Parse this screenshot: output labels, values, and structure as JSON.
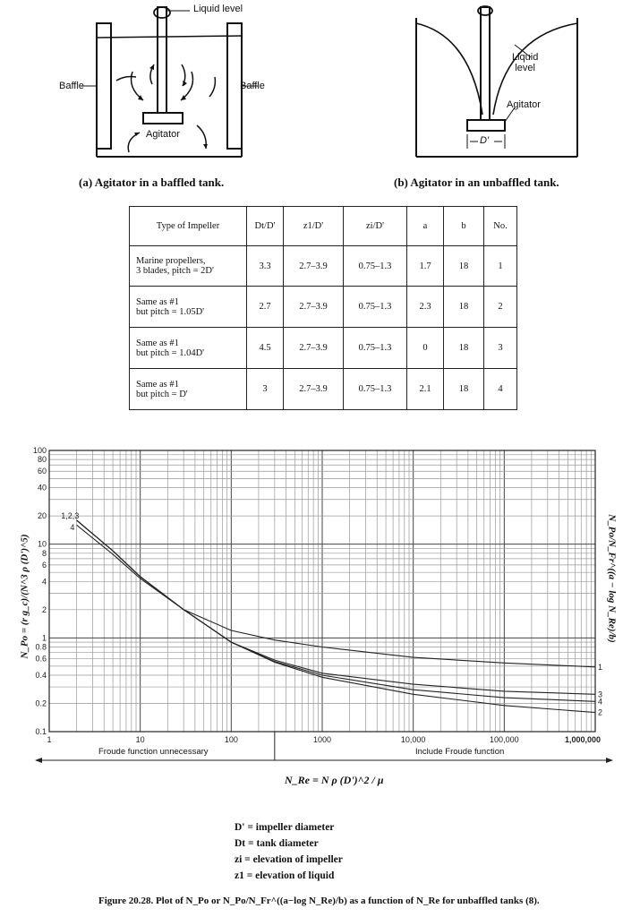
{
  "diagram_a": {
    "liquid_level": "Liquid level",
    "baffle_left": "Baffle",
    "baffle_right": "Baffle",
    "agitator": "Agitator",
    "caption": "(a) Agitator in a baffled tank."
  },
  "diagram_b": {
    "liquid_level": "Liquid\nlevel",
    "agitator": "Agitator",
    "dprime": "D'",
    "caption": "(b) Agitator in an unbaffled tank."
  },
  "table": {
    "headers": [
      "Type of Impeller",
      "Dt/D'",
      "z1/D'",
      "zi/D'",
      "a",
      "b",
      "No."
    ],
    "rows": [
      [
        "Marine propellers,\n3 blades, pitch = 2D'",
        "3.3",
        "2.7–3.9",
        "0.75–1.3",
        "1.7",
        "18",
        "1"
      ],
      [
        "Same as #1\nbut pitch = 1.05D'",
        "2.7",
        "2.7–3.9",
        "0.75–1.3",
        "2.3",
        "18",
        "2"
      ],
      [
        "Same as #1\nbut pitch = 1.04D'",
        "4.5",
        "2.7–3.9",
        "0.75–1.3",
        "0",
        "18",
        "3"
      ],
      [
        "Same as #1\nbut pitch = D'",
        "3",
        "2.7–3.9",
        "0.75–1.3",
        "2.1",
        "18",
        "4"
      ]
    ]
  },
  "chart_data": {
    "type": "line",
    "x_scale": "log",
    "y_scale": "log",
    "xlim": [
      1,
      1000000
    ],
    "ylim": [
      0.1,
      100
    ],
    "grid": true,
    "y_ticks": [
      "100",
      "80",
      "60",
      "40",
      "20",
      "10",
      "8",
      "6",
      "4",
      "2",
      "1",
      "0.8",
      "0.6",
      "0.4",
      "0.2",
      "0.1"
    ],
    "x_ticks": [
      "1",
      "10",
      "100",
      "1000",
      "10,000",
      "100,000",
      "1,000,000"
    ],
    "ylabel_left": "N_Po = (r g_c)/(N^3 ρ (D')^5)",
    "ylabel_right": "N_Po/N_Fr^((a − log N_Re)/b)",
    "curve_labels_left": [
      "1,2,3",
      "4"
    ],
    "left_region_label": "Froude function unnecessary",
    "right_region_label": "Include Froude function",
    "series": [
      {
        "name": "1",
        "x": [
          2,
          5,
          10,
          30,
          100,
          300,
          1000,
          10000,
          100000,
          1000000
        ],
        "y": [
          18,
          8.5,
          4.5,
          2.0,
          1.2,
          0.95,
          0.8,
          0.62,
          0.54,
          0.49
        ]
      },
      {
        "name": "2",
        "x": [
          2,
          5,
          10,
          30,
          100,
          300,
          1000,
          10000,
          100000,
          1000000
        ],
        "y": [
          18,
          8.5,
          4.5,
          2.0,
          0.9,
          0.55,
          0.38,
          0.25,
          0.19,
          0.16
        ]
      },
      {
        "name": "3",
        "x": [
          2,
          5,
          10,
          30,
          100,
          300,
          1000,
          10000,
          100000,
          1000000
        ],
        "y": [
          18,
          8.5,
          4.5,
          2.0,
          0.9,
          0.58,
          0.42,
          0.32,
          0.27,
          0.25
        ]
      },
      {
        "name": "4",
        "x": [
          2,
          5,
          10,
          30,
          100,
          300,
          1000,
          10000,
          100000,
          1000000
        ],
        "y": [
          16,
          7.8,
          4.3,
          2.0,
          0.9,
          0.56,
          0.4,
          0.28,
          0.23,
          0.21
        ]
      }
    ]
  },
  "reynolds": {
    "label": "N_Re = N ρ (D')^2 / μ"
  },
  "legend": [
    "D' = impeller diameter",
    "Dt = tank diameter",
    "zi = elevation of impeller",
    "z1 = elevation of liquid"
  ],
  "figure_caption": "Figure 20.28.  Plot of N_Po or N_Po/N_Fr^((a−log N_Re)/b) as a function of N_Re for unbaffled tanks (8)."
}
